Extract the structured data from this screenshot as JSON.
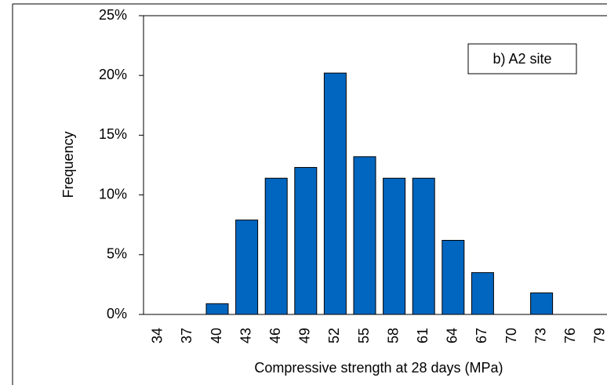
{
  "chart_data": {
    "type": "bar",
    "y_label": "Frequency",
    "x_label": "Compressive strength at 28 days (MPa)",
    "annotation": "b)  A2 site",
    "categories": [
      "34",
      "37",
      "40",
      "43",
      "46",
      "49",
      "52",
      "55",
      "58",
      "61",
      "64",
      "67",
      "70",
      "73",
      "76",
      "79"
    ],
    "values": [
      0,
      0,
      0.9,
      7.9,
      11.4,
      12.3,
      20.2,
      13.2,
      11.4,
      11.4,
      6.2,
      3.5,
      0,
      1.8,
      0,
      0
    ],
    "color": "#0066c0",
    "ylim": [
      0,
      25
    ],
    "yticks": [
      {
        "value": 0,
        "label": "0%"
      },
      {
        "value": 5,
        "label": "5%"
      },
      {
        "value": 10,
        "label": "10%"
      },
      {
        "value": 15,
        "label": "15%"
      },
      {
        "value": 20,
        "label": "20%"
      },
      {
        "value": 25,
        "label": "25%"
      }
    ],
    "grid": false
  }
}
